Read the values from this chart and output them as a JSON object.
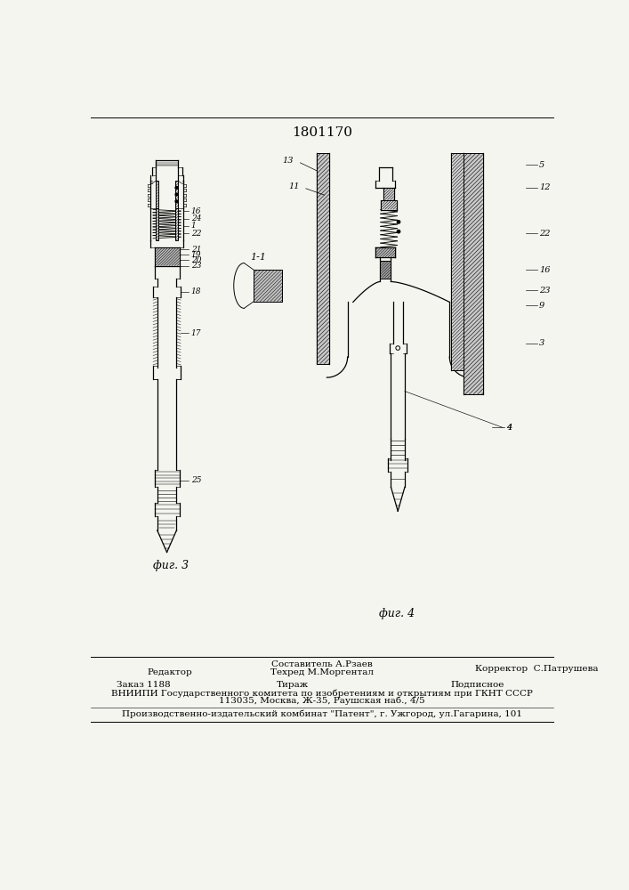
{
  "title": "1801170",
  "bg_color": "#f5f5f0",
  "fig3_caption": "фиг. 3",
  "fig4_caption": "фиг. 4",
  "fig1_caption": "1-1",
  "footer_line1_left": "Редактор",
  "footer_line1_center": "Составитель А.Рзаев",
  "footer_line2_center": "Техред М.Моргентал",
  "footer_line1_right": "Корректор  С.Патрушева",
  "footer_line3_left": "Заказ 1188",
  "footer_line3_center": "Тираж",
  "footer_line3_right": "Подписное",
  "footer_line4": "ВНИИПИ Государственного комитета по изобретениям и открытиям при ГКНТ СССР",
  "footer_line5": "113035, Москва, Ж-35, Раушская наб., 4/5",
  "footer_line6": "Производственно-издательский комбинат \"Патент\", г. Ужгород, ул.Гагарина, 101",
  "font_size_footer": 7.5
}
